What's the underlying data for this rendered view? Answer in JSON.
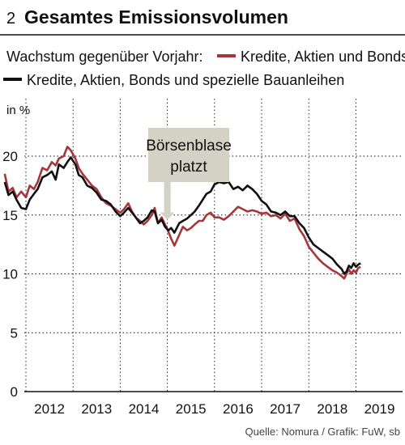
{
  "figure": {
    "number": "2",
    "title": "Gesamtes Emissionsvolumen",
    "subtitle": "Wachstum gegenüber Vorjahr:",
    "source": "Quelle: Nomura / Grafik: FuW, sb"
  },
  "chart_data": {
    "type": "line",
    "ylabel": "in %",
    "ylim": [
      0,
      20
    ],
    "yticks": [
      0,
      5,
      10,
      15,
      20
    ],
    "xlim": [
      2011.5,
      2019.6
    ],
    "xtick_labels": [
      "2012",
      "2013",
      "2014",
      "2015",
      "2016",
      "2017",
      "2018",
      "2019"
    ],
    "grid": "dotted vertical gridlines at year boundaries, horizontal gridlines at y ticks",
    "legend": "top",
    "colors": {
      "red": "#a5363a",
      "black": "#111111",
      "callout_fill": "#d3d2c4"
    },
    "annotation": {
      "line1": "Börsenblase",
      "line2": "platzt",
      "x": 2015.0,
      "y": 14.6
    },
    "series": [
      {
        "name": "Kredite, Aktien und Bonds",
        "color": "#a5363a",
        "x": [
          2011.55,
          2011.63,
          2011.72,
          2011.8,
          2011.9,
          2012.0,
          2012.08,
          2012.17,
          2012.25,
          2012.35,
          2012.45,
          2012.55,
          2012.63,
          2012.7,
          2012.8,
          2012.88,
          2012.95,
          2013.05,
          2013.12,
          2013.2,
          2013.3,
          2013.4,
          2013.5,
          2013.6,
          2013.7,
          2013.8,
          2013.9,
          2014.0,
          2014.08,
          2014.17,
          2014.25,
          2014.33,
          2014.42,
          2014.5,
          2014.58,
          2014.67,
          2014.73,
          2014.8,
          2014.88,
          2014.95,
          2015.02,
          2015.08,
          2015.15,
          2015.25,
          2015.33,
          2015.42,
          2015.5,
          2015.58,
          2015.67,
          2015.75,
          2015.83,
          2015.92,
          2016.0,
          2016.1,
          2016.2,
          2016.3,
          2016.4,
          2016.5,
          2016.6,
          2016.7,
          2016.8,
          2016.9,
          2017.0,
          2017.1,
          2017.2,
          2017.3,
          2017.4,
          2017.5,
          2017.6,
          2017.7,
          2017.8,
          2017.9,
          2018.0,
          2018.1,
          2018.2,
          2018.3,
          2018.4,
          2018.5,
          2018.6,
          2018.7,
          2018.75,
          2018.8,
          2018.85,
          2018.9,
          2018.95,
          2019.0,
          2019.05,
          2019.1
        ],
        "y": [
          18.5,
          17.0,
          17.3,
          16.5,
          17.0,
          16.5,
          17.5,
          17.2,
          17.8,
          19.0,
          18.8,
          19.5,
          19.2,
          19.8,
          20.0,
          20.8,
          20.5,
          19.8,
          19.0,
          18.5,
          18.0,
          17.5,
          17.2,
          16.5,
          16.0,
          15.8,
          15.5,
          15.2,
          15.5,
          16.0,
          15.3,
          14.8,
          14.5,
          14.2,
          14.5,
          15.0,
          15.6,
          14.3,
          14.8,
          14.2,
          13.6,
          13.0,
          12.4,
          13.3,
          14.0,
          13.7,
          13.9,
          14.2,
          14.5,
          14.5,
          15.0,
          15.2,
          14.8,
          14.8,
          14.6,
          14.9,
          15.3,
          15.7,
          15.5,
          15.3,
          15.4,
          15.3,
          15.1,
          15.2,
          14.9,
          15.0,
          14.7,
          15.1,
          14.5,
          14.7,
          13.8,
          13.2,
          12.3,
          11.8,
          11.3,
          10.9,
          10.6,
          10.3,
          10.1,
          9.8,
          9.6,
          10.0,
          10.4,
          10.0,
          10.3,
          10.1,
          10.5,
          10.6
        ]
      },
      {
        "name": "Kredite, Aktien, Bonds und spezielle Bauanleihen",
        "color": "#111111",
        "x": [
          2011.55,
          2011.63,
          2011.72,
          2011.8,
          2011.9,
          2012.0,
          2012.08,
          2012.17,
          2012.25,
          2012.35,
          2012.45,
          2012.55,
          2012.63,
          2012.7,
          2012.8,
          2012.88,
          2012.95,
          2013.05,
          2013.12,
          2013.2,
          2013.3,
          2013.4,
          2013.5,
          2013.6,
          2013.7,
          2013.8,
          2013.9,
          2014.0,
          2014.08,
          2014.17,
          2014.25,
          2014.33,
          2014.42,
          2014.5,
          2014.58,
          2014.67,
          2014.73,
          2014.8,
          2014.88,
          2014.95,
          2015.02,
          2015.08,
          2015.15,
          2015.25,
          2015.33,
          2015.42,
          2015.5,
          2015.58,
          2015.67,
          2015.75,
          2015.83,
          2015.92,
          2016.0,
          2016.1,
          2016.2,
          2016.3,
          2016.4,
          2016.5,
          2016.6,
          2016.7,
          2016.8,
          2016.9,
          2017.0,
          2017.1,
          2017.2,
          2017.3,
          2017.4,
          2017.5,
          2017.6,
          2017.7,
          2017.8,
          2017.9,
          2018.0,
          2018.1,
          2018.2,
          2018.3,
          2018.4,
          2018.5,
          2018.6,
          2018.7,
          2018.75,
          2018.8,
          2018.85,
          2018.9,
          2018.95,
          2019.0,
          2019.05,
          2019.1
        ],
        "y": [
          17.8,
          16.7,
          17.0,
          16.3,
          15.6,
          15.5,
          16.3,
          16.8,
          17.2,
          18.2,
          18.4,
          18.7,
          18.0,
          19.3,
          19.0,
          19.5,
          19.9,
          19.3,
          18.4,
          18.2,
          17.5,
          17.3,
          16.9,
          16.3,
          16.2,
          15.9,
          15.3,
          14.9,
          15.2,
          15.6,
          15.2,
          14.8,
          14.3,
          14.5,
          14.8,
          15.4,
          15.3,
          14.3,
          14.6,
          14.0,
          13.7,
          13.9,
          13.5,
          14.3,
          14.5,
          14.7,
          15.0,
          15.3,
          15.8,
          16.3,
          16.8,
          17.0,
          17.6,
          17.8,
          17.7,
          17.8,
          17.2,
          17.4,
          17.1,
          17.5,
          17.2,
          16.8,
          16.2,
          15.9,
          15.3,
          15.2,
          15.0,
          15.3,
          14.9,
          14.9,
          14.3,
          13.9,
          13.1,
          12.5,
          12.2,
          11.9,
          11.6,
          11.3,
          10.8,
          10.4,
          10.0,
          10.2,
          10.7,
          10.5,
          10.9,
          10.6,
          10.8,
          10.9
        ]
      }
    ]
  }
}
